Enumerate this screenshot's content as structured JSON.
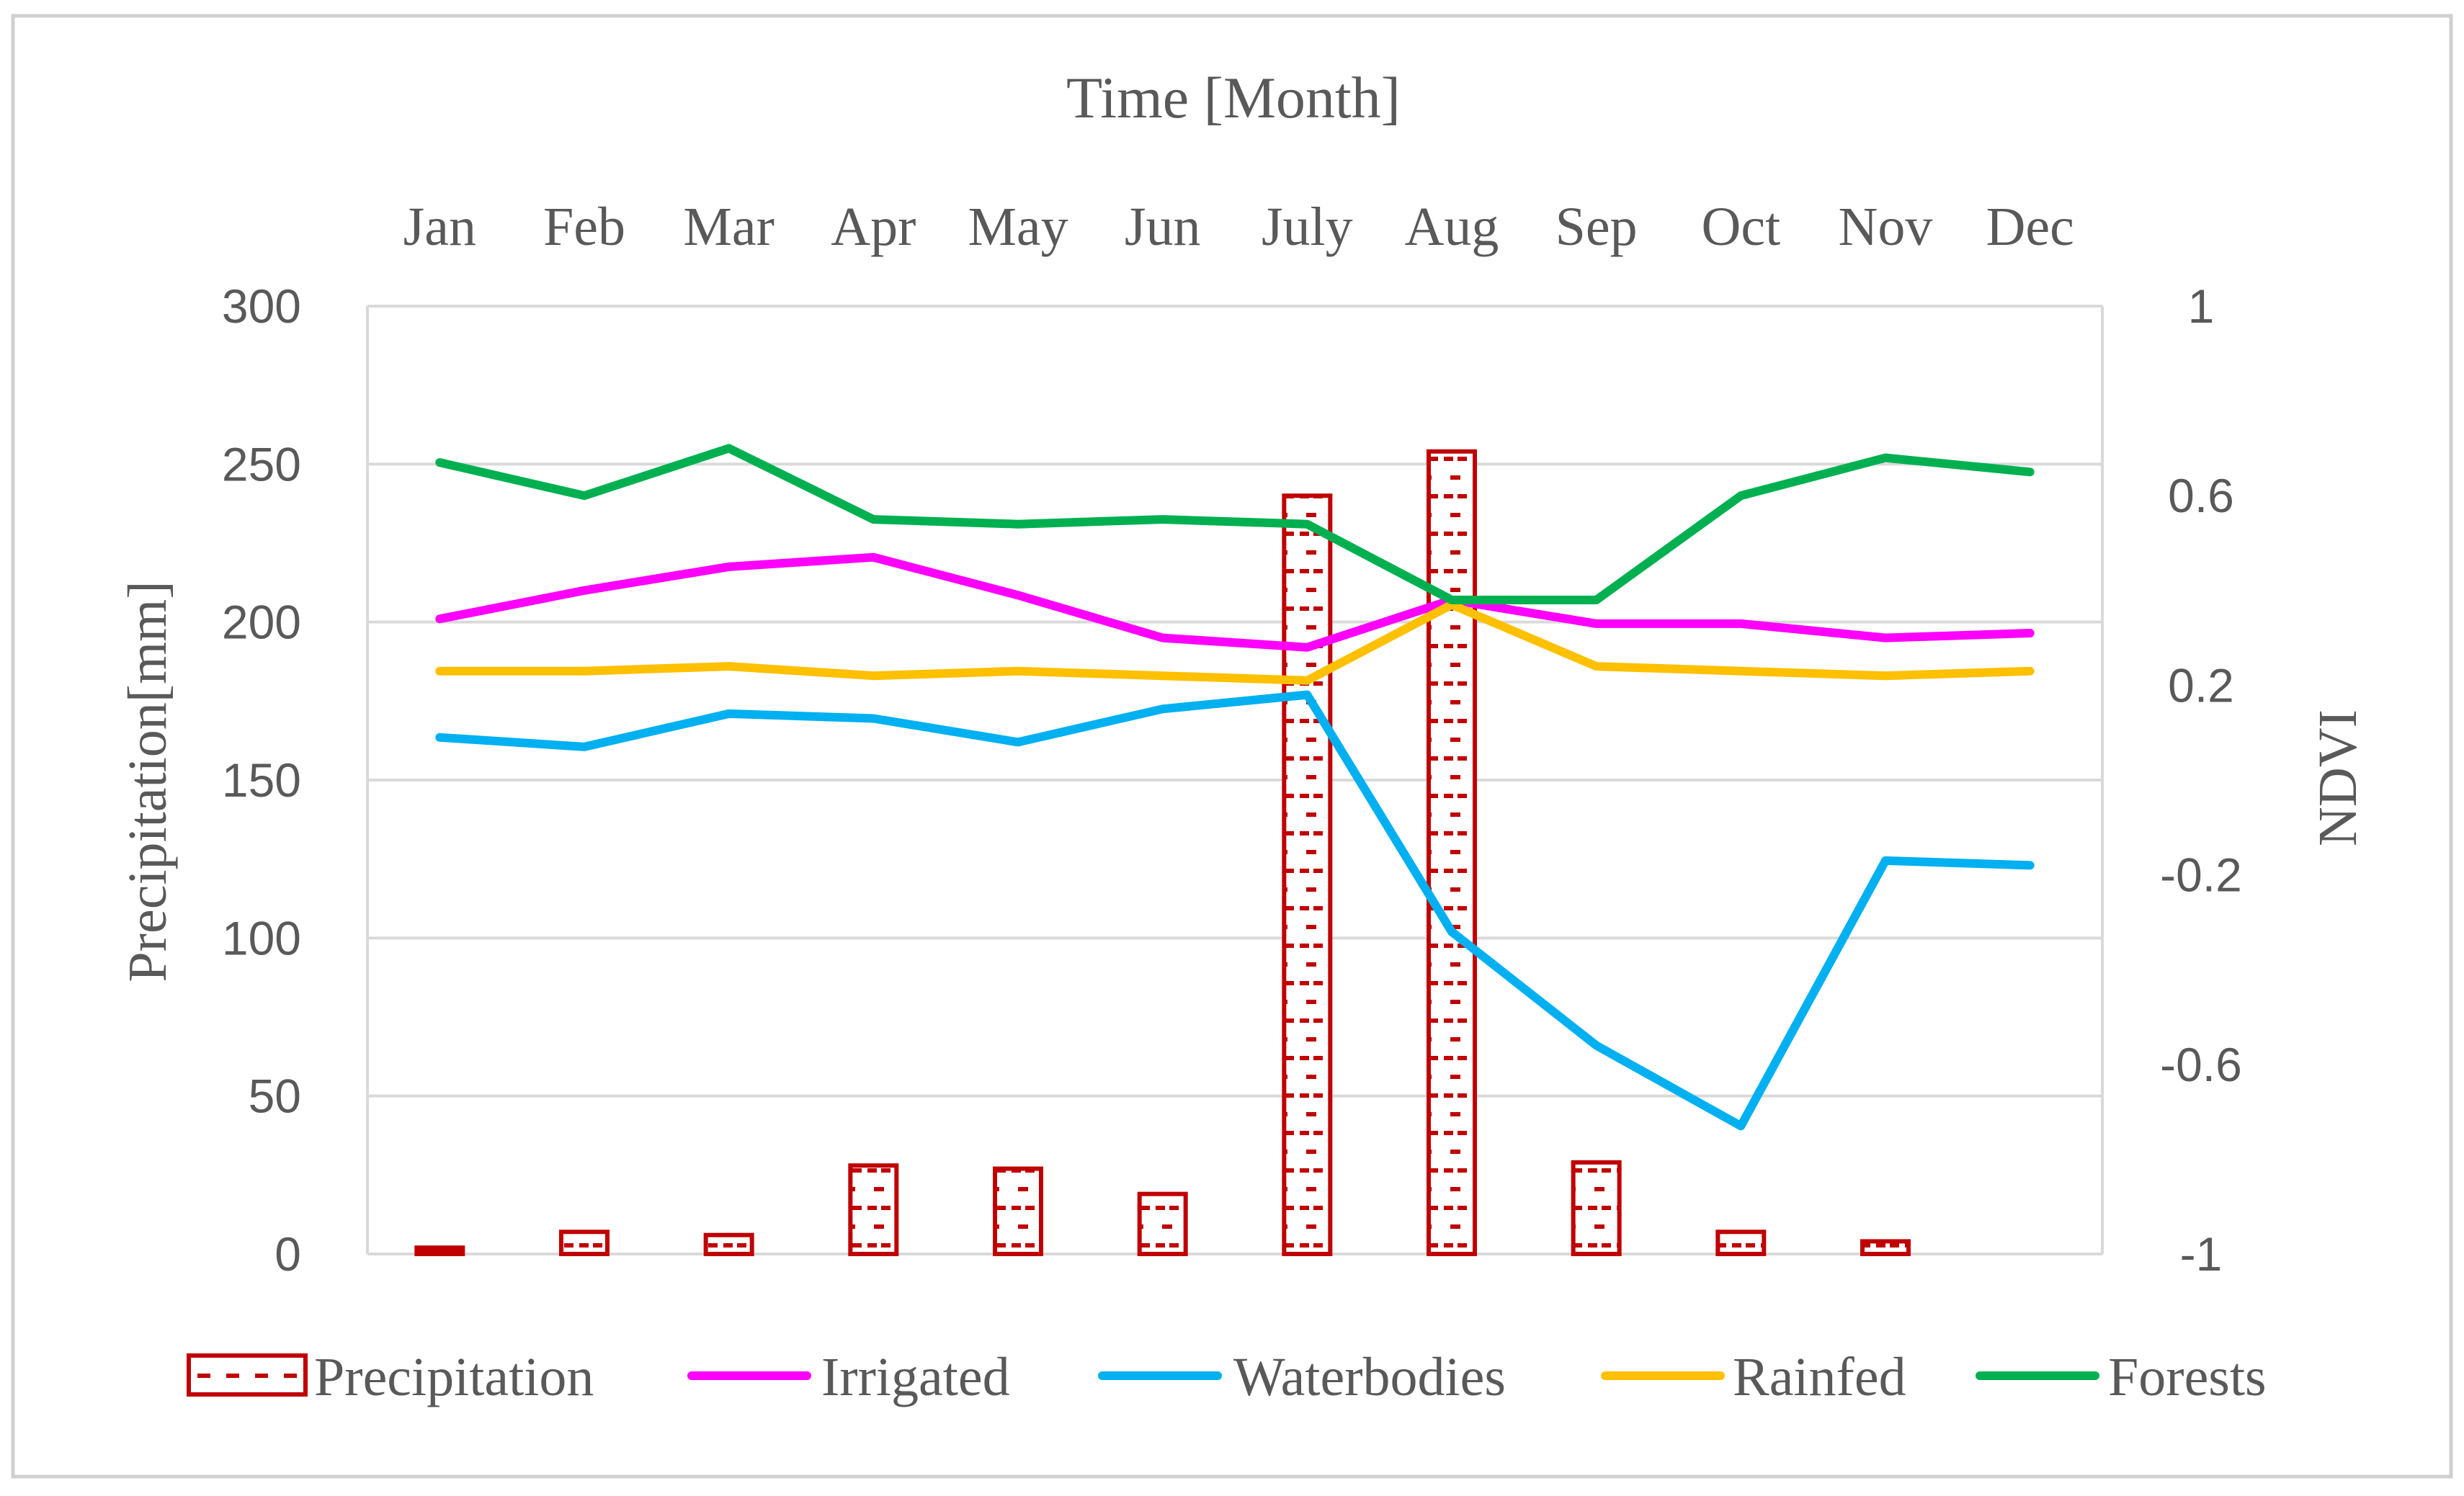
{
  "chart_data": {
    "type": "bar+line",
    "title": "Time [Month]",
    "categories": [
      "Jan",
      "Feb",
      "Mar",
      "Apr",
      "May",
      "Jun",
      "July",
      "Aug",
      "Sep",
      "Oct",
      "Nov",
      "Dec"
    ],
    "y_left": {
      "label": "Precipitation[mm]",
      "range": [
        0,
        300
      ],
      "ticks": [
        0,
        50,
        100,
        150,
        200,
        250,
        300
      ]
    },
    "y_right": {
      "label": "NDVI",
      "range": [
        -1,
        1
      ],
      "ticks": [
        1,
        0.6,
        0.2,
        -0.2,
        -0.6,
        -1
      ],
      "tick_labels": [
        "1",
        "0.6",
        "0.2",
        "-0.2",
        "-0.6",
        "-1"
      ]
    },
    "bars": {
      "name": "Precipitation",
      "axis": "left",
      "color": "#c00000",
      "values": [
        2,
        7,
        6,
        28,
        27,
        19,
        240,
        254,
        29,
        7,
        4,
        0
      ]
    },
    "series": [
      {
        "name": "Irrigated",
        "axis": "right",
        "color": "#ff00ff",
        "values": [
          0.34,
          0.4,
          0.45,
          0.47,
          0.39,
          0.3,
          0.28,
          0.38,
          0.33,
          0.33,
          0.3,
          0.31
        ]
      },
      {
        "name": "Waterbodies",
        "axis": "right",
        "color": "#00b0f0",
        "values": [
          0.09,
          0.07,
          0.14,
          0.13,
          0.08,
          0.15,
          0.18,
          -0.32,
          -0.56,
          -0.73,
          -0.17,
          -0.18
        ]
      },
      {
        "name": "Rainfed",
        "axis": "right",
        "color": "#ffc000",
        "values": [
          0.23,
          0.23,
          0.24,
          0.22,
          0.23,
          0.22,
          0.21,
          0.37,
          0.24,
          0.23,
          0.22,
          0.23
        ]
      },
      {
        "name": "Forests",
        "axis": "right",
        "color": "#00b050",
        "values": [
          0.67,
          0.6,
          0.7,
          0.55,
          0.54,
          0.55,
          0.54,
          0.38,
          0.38,
          0.6,
          0.68,
          0.65
        ]
      }
    ],
    "legend": [
      "Precipitation",
      "Irrigated",
      "Waterbodies",
      "Rainfed",
      "Forests"
    ],
    "legend_position": "bottom",
    "grid": true
  }
}
